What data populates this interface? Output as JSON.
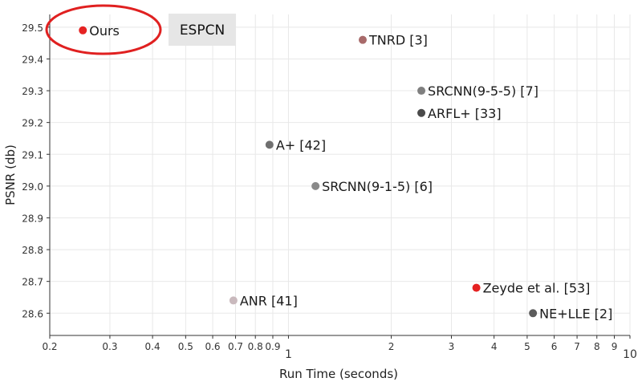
{
  "chart_data": {
    "type": "scatter",
    "title": "",
    "xlabel": "Run Time (seconds)",
    "ylabel": "PSNR (db)",
    "xscale": "log",
    "xlim": [
      0.2,
      10
    ],
    "ylim": [
      28.53,
      29.54
    ],
    "grid": true,
    "x_ticks": [
      {
        "value": 0.2,
        "label": "0.2"
      },
      {
        "value": 0.3,
        "label": "0.3"
      },
      {
        "value": 0.4,
        "label": "0.4"
      },
      {
        "value": 0.5,
        "label": "0.5"
      },
      {
        "value": 0.6,
        "label": "0.6"
      },
      {
        "value": 0.7,
        "label": "0.7"
      },
      {
        "value": 0.8,
        "label": "0.8"
      },
      {
        "value": 0.9,
        "label": "0.9"
      },
      {
        "value": 1,
        "label": "1",
        "major": true
      },
      {
        "value": 2,
        "label": "2"
      },
      {
        "value": 3,
        "label": "3"
      },
      {
        "value": 4,
        "label": "4"
      },
      {
        "value": 5,
        "label": "5"
      },
      {
        "value": 6,
        "label": "6"
      },
      {
        "value": 7,
        "label": "7"
      },
      {
        "value": 8,
        "label": "8"
      },
      {
        "value": 9,
        "label": "9"
      },
      {
        "value": 10,
        "label": "10",
        "major": true
      }
    ],
    "y_ticks": [
      {
        "value": 28.6,
        "label": "28.6"
      },
      {
        "value": 28.7,
        "label": "28.7"
      },
      {
        "value": 28.8,
        "label": "28.8"
      },
      {
        "value": 28.9,
        "label": "28.9"
      },
      {
        "value": 29.0,
        "label": "29.0"
      },
      {
        "value": 29.1,
        "label": "29.1"
      },
      {
        "value": 29.2,
        "label": "29.2"
      },
      {
        "value": 29.3,
        "label": "29.3"
      },
      {
        "value": 29.4,
        "label": "29.4"
      },
      {
        "value": 29.5,
        "label": "29.5"
      }
    ],
    "points": [
      {
        "label": "Ours",
        "x": 0.25,
        "y": 29.49,
        "color": "#e52222"
      },
      {
        "label": "TNRD [3]",
        "x": 1.65,
        "y": 29.46,
        "color": "#a86a6a"
      },
      {
        "label": "SRCNN(9-5-5) [7]",
        "x": 2.45,
        "y": 29.3,
        "color": "#7f7f7f"
      },
      {
        "label": "ARFL+ [33]",
        "x": 2.45,
        "y": 29.23,
        "color": "#4a4a4a"
      },
      {
        "label": "A+ [42]",
        "x": 0.88,
        "y": 29.13,
        "color": "#6f6f6f"
      },
      {
        "label": "SRCNN(9-1-5) [6]",
        "x": 1.2,
        "y": 29.0,
        "color": "#8a8a8a"
      },
      {
        "label": "ANR [41]",
        "x": 0.69,
        "y": 28.64,
        "color": "#c9b9bd"
      },
      {
        "label": "Zeyde et al. [53]",
        "x": 3.55,
        "y": 28.68,
        "color": "#e52222"
      },
      {
        "label": "NE+LLE [2]",
        "x": 5.2,
        "y": 28.6,
        "color": "#5c5c5c"
      }
    ],
    "annotations": [
      {
        "text": "ESPCN",
        "boxed": true
      }
    ],
    "highlight": {
      "target": "Ours",
      "shape": "ellipse",
      "color": "#e02020"
    }
  }
}
